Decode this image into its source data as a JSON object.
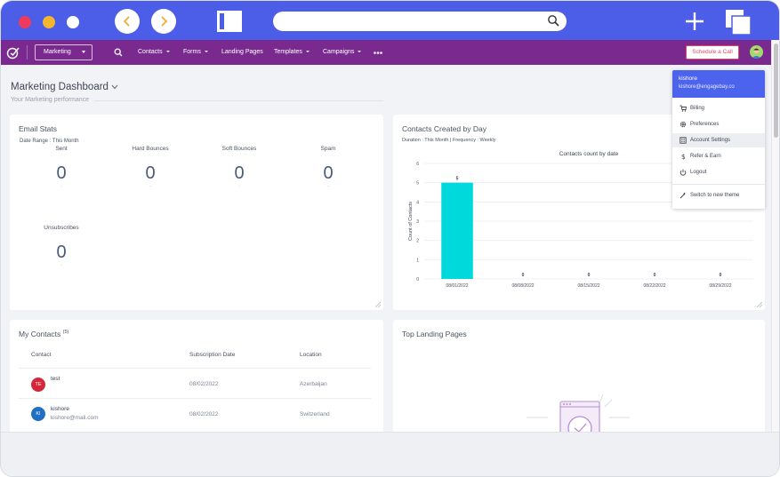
{
  "browser": {
    "url": ""
  },
  "nav": {
    "module": "Marketing",
    "items": [
      "Contacts",
      "Forms",
      "Landing Pages",
      "Templates",
      "Campaigns"
    ],
    "schedule_button": "Schedule a Call"
  },
  "page": {
    "title": "Marketing Dashboard",
    "subtitle": "Your Marketing performance"
  },
  "email_stats": {
    "title": "Email Stats",
    "date_range": "Date Range : This Month",
    "stats": [
      {
        "label": "Sent",
        "value": "0",
        "note": "-"
      },
      {
        "label": "Hard Bounces",
        "value": "0",
        "note": "-"
      },
      {
        "label": "Soft Bounces",
        "value": "0",
        "note": "-"
      },
      {
        "label": "Spam",
        "value": "0",
        "note": "-"
      },
      {
        "label": "Unsubscribes",
        "value": "0",
        "note": "-"
      }
    ]
  },
  "contacts_by_day": {
    "title": "Contacts Created by Day",
    "subtitle": "Duration : This Month | Frequency : Weekly"
  },
  "chart_data": {
    "type": "bar",
    "title": "Contacts count by date",
    "xlabel": "",
    "ylabel": "Count of Contacts",
    "categories": [
      "08/01/2022",
      "08/08/2022",
      "08/15/2022",
      "08/22/2022",
      "08/29/2022"
    ],
    "values": [
      5,
      0,
      0,
      0,
      0
    ],
    "data_labels": [
      "5",
      "0",
      "0",
      "0",
      "0"
    ],
    "y_ticks": [
      "0",
      "1",
      "2",
      "3",
      "4",
      "5",
      "6"
    ],
    "ylim": [
      0,
      6
    ],
    "grid": true,
    "bar_color": "#00d9dc"
  },
  "my_contacts": {
    "title": "My Contacts",
    "count": "(5)",
    "columns": [
      "Contact",
      "Subscription Date",
      "Location"
    ],
    "rows": [
      {
        "initials": "TE",
        "name": "test",
        "email": "",
        "date": "08/02/2022",
        "location": "Azerbaijan",
        "color": "#d6263a"
      },
      {
        "initials": "KI",
        "name": "kishore",
        "email": "kishore@mail.com",
        "date": "08/02/2022",
        "location": "Switzerland",
        "color": "#1f6fc3"
      }
    ]
  },
  "landing_pages": {
    "title": "Top Landing Pages"
  },
  "user_menu": {
    "name": "kishore",
    "email": "kishore@engagebay.co",
    "items": [
      {
        "label": "Billing",
        "icon": "cart-icon"
      },
      {
        "label": "Preferences",
        "icon": "gear-icon"
      },
      {
        "label": "Account Settings",
        "icon": "building-icon"
      },
      {
        "label": "Refer & Earn",
        "icon": "dollar-icon"
      },
      {
        "label": "Logout",
        "icon": "power-icon"
      }
    ],
    "switch_theme": "Switch to new theme"
  },
  "colors": {
    "browser_bar": "#4c5ee8",
    "app_nav": "#7a2a8f",
    "menu_header": "#4c63ee",
    "schedule_accent": "#e04a6a"
  }
}
